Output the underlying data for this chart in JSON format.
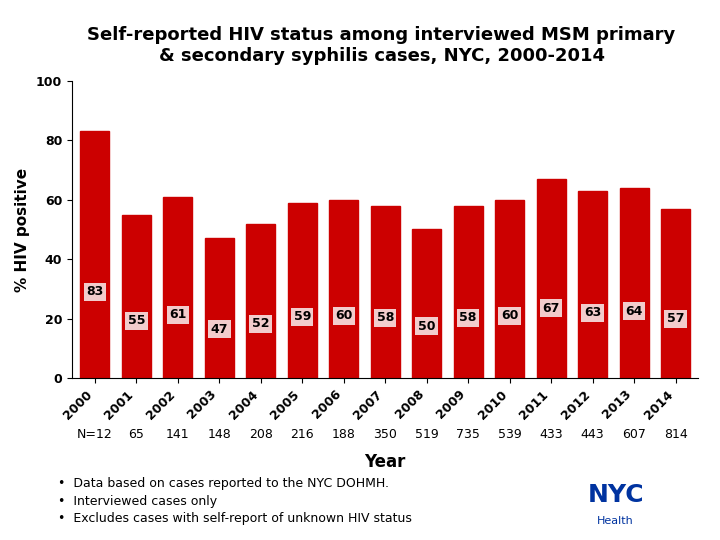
{
  "years": [
    "2000",
    "2001",
    "2002",
    "2003",
    "2004",
    "2005",
    "2006",
    "2007",
    "2008",
    "2009",
    "2010",
    "2011",
    "2012",
    "2013",
    "2014"
  ],
  "values": [
    83,
    55,
    61,
    47,
    52,
    59,
    60,
    58,
    50,
    58,
    60,
    67,
    63,
    64,
    57
  ],
  "n_values": [
    "N=12",
    "65",
    "141",
    "148",
    "208",
    "216",
    "188",
    "350",
    "519",
    "735",
    "539",
    "433",
    "443",
    "607",
    "814"
  ],
  "bar_color": "#CC0000",
  "label_bg_color": "#F2CCCC",
  "title_line1": "Self-reported HIV status among interviewed MSM primary",
  "title_line2": "& secondary syphilis cases, NYC, 2000-2014",
  "ylabel": "% HIV positive",
  "xlabel": "Year",
  "ylim": [
    0,
    100
  ],
  "yticks": [
    0,
    20,
    40,
    60,
    80,
    100
  ],
  "bullet1": "Data based on cases reported to the NYC DOHMH.",
  "bullet2": "Interviewed cases only",
  "bullet3": "Excludes cases with self-report of unknown HIV status",
  "background_color": "#FFFFFF",
  "title_fontsize": 13,
  "ylabel_fontsize": 11,
  "xlabel_fontsize": 12,
  "tick_fontsize": 9,
  "label_fontsize": 9,
  "n_fontsize": 9,
  "bullet_fontsize": 9
}
